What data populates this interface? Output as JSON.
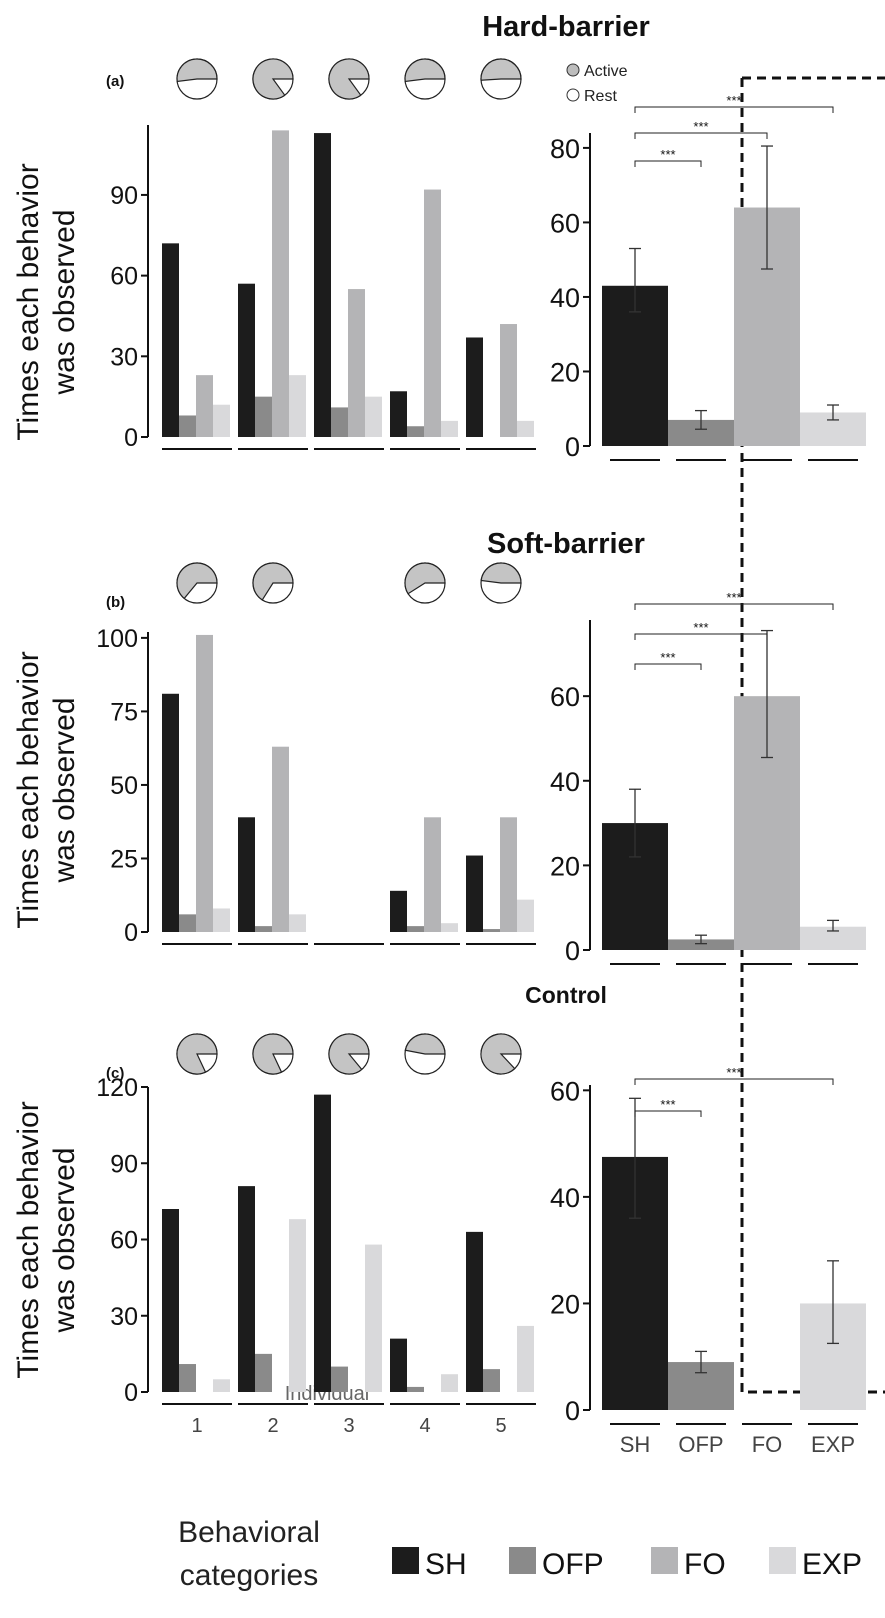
{
  "colors": {
    "SH": "#1c1c1c",
    "OFP": "#8a8a8a",
    "FO": "#b4b4b6",
    "EXP": "#d9d9db",
    "active": "#c4c4c4",
    "rest": "#ffffff"
  },
  "pie_legend": {
    "active": "Active",
    "rest": "Rest"
  },
  "y_axis_label_line1": "Times each behavior",
  "y_axis_label_line2": "was observed",
  "x_axis_label": "Individual",
  "legend": {
    "title_line1": "Behavioral",
    "title_line2": "categories",
    "items": [
      "SH",
      "OFP",
      "FO",
      "EXP"
    ]
  },
  "chart_data": [
    {
      "type": "bar",
      "title": "Hard-barrier",
      "panel": "(a)",
      "categories": [
        "1",
        "2",
        "3",
        "4",
        "5"
      ],
      "series": [
        {
          "name": "SH",
          "values": [
            72,
            57,
            113,
            17,
            37
          ]
        },
        {
          "name": "OFP",
          "values": [
            8,
            15,
            11,
            4,
            0
          ]
        },
        {
          "name": "FO",
          "values": [
            23,
            114,
            55,
            92,
            42
          ]
        },
        {
          "name": "EXP",
          "values": [
            12,
            23,
            15,
            6,
            6
          ]
        }
      ],
      "active_fraction": [
        0.52,
        0.85,
        0.85,
        0.52,
        0.51
      ],
      "yticks": [
        0,
        30,
        60,
        90
      ],
      "ylim": [
        0,
        116
      ]
    },
    {
      "type": "bar",
      "panel_of": "Hard-barrier",
      "categories": [
        "SH",
        "OFP",
        "FO",
        "EXP"
      ],
      "values": [
        43,
        7,
        64,
        9
      ],
      "err_low": [
        36,
        4.5,
        47.5,
        7
      ],
      "err_high": [
        53,
        9.5,
        80.5,
        11
      ],
      "yticks": [
        0,
        20,
        40,
        60,
        80
      ],
      "ylim": [
        0,
        84
      ],
      "significance": [
        {
          "from": "SH",
          "to": "OFP",
          "label": "***"
        },
        {
          "from": "SH",
          "to": "FO",
          "label": "***"
        },
        {
          "from": "SH",
          "to": "EXP",
          "label": "***"
        }
      ]
    },
    {
      "type": "bar",
      "title": "Soft-barrier",
      "panel": "(b)",
      "categories": [
        "1",
        "2",
        "3",
        "4",
        "5"
      ],
      "series": [
        {
          "name": "SH",
          "values": [
            81,
            39,
            0,
            14,
            26
          ]
        },
        {
          "name": "OFP",
          "values": [
            6,
            2,
            0,
            2,
            1
          ]
        },
        {
          "name": "FO",
          "values": [
            101,
            63,
            0,
            39,
            39
          ]
        },
        {
          "name": "EXP",
          "values": [
            8,
            6,
            0,
            3,
            11
          ]
        }
      ],
      "active_fraction": [
        0.64,
        0.66,
        null,
        0.59,
        0.48
      ],
      "yticks": [
        0,
        25,
        50,
        75,
        100
      ],
      "ylim": [
        0,
        102
      ]
    },
    {
      "type": "bar",
      "panel_of": "Soft-barrier",
      "categories": [
        "SH",
        "OFP",
        "FO",
        "EXP"
      ],
      "values": [
        30,
        2.5,
        60,
        5.5
      ],
      "err_low": [
        22,
        1.5,
        45.5,
        4.5
      ],
      "err_high": [
        38,
        3.5,
        75.5,
        7
      ],
      "yticks": [
        0,
        20,
        40,
        60
      ],
      "ylim": [
        0,
        78
      ],
      "significance": [
        {
          "from": "SH",
          "to": "OFP",
          "label": "***"
        },
        {
          "from": "SH",
          "to": "FO",
          "label": "***"
        },
        {
          "from": "SH",
          "to": "EXP",
          "label": "***"
        }
      ]
    },
    {
      "type": "bar",
      "title": "Control",
      "panel": "(c)",
      "categories": [
        "1",
        "2",
        "3",
        "4",
        "5"
      ],
      "series": [
        {
          "name": "SH",
          "values": [
            72,
            81,
            117,
            21,
            63
          ]
        },
        {
          "name": "OFP",
          "values": [
            11,
            15,
            10,
            2,
            9
          ]
        },
        {
          "name": "FO",
          "values": [
            0,
            0,
            0,
            0,
            0
          ]
        },
        {
          "name": "EXP",
          "values": [
            5,
            68,
            58,
            7,
            26
          ]
        }
      ],
      "active_fraction": [
        0.82,
        0.82,
        0.86,
        0.47,
        0.87
      ],
      "yticks": [
        0,
        30,
        60,
        90,
        120
      ],
      "ylim": [
        0,
        120
      ],
      "xlabel": "Individual"
    },
    {
      "type": "bar",
      "panel_of": "Control",
      "categories": [
        "SH",
        "OFP",
        "FO",
        "EXP"
      ],
      "values": [
        47.5,
        9,
        0,
        20
      ],
      "err_low": [
        36,
        7,
        0,
        12.5
      ],
      "err_high": [
        58.5,
        11,
        0,
        28
      ],
      "yticks": [
        0,
        20,
        40,
        60
      ],
      "ylim": [
        0,
        61
      ],
      "significance": [
        {
          "from": "SH",
          "to": "OFP",
          "label": "***"
        },
        {
          "from": "SH",
          "to": "EXP",
          "label": "***"
        }
      ]
    }
  ]
}
